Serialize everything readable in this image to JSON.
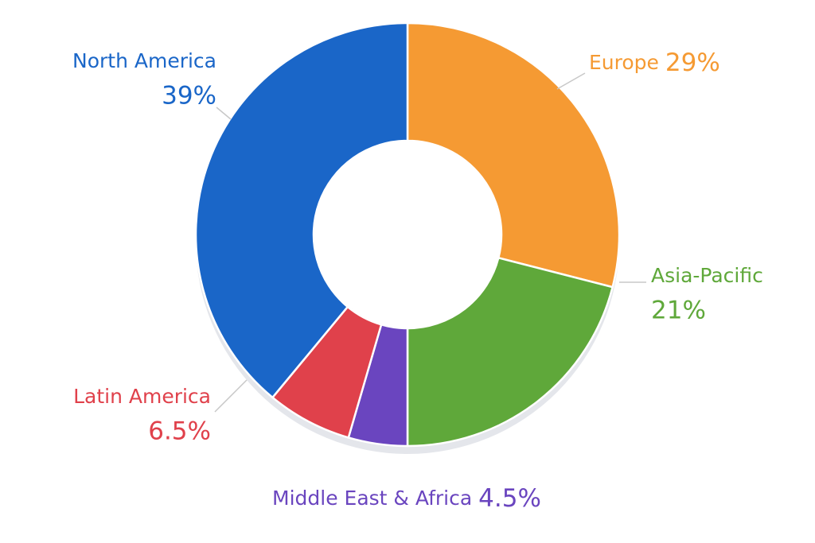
{
  "chart_data": {
    "type": "pie",
    "donut": true,
    "categories": [
      "Europe",
      "Asia-Pacific",
      "Middle East & Africa",
      "Latin America",
      "North America"
    ],
    "values": [
      29,
      21,
      4.5,
      6.5,
      39
    ],
    "value_labels": [
      "29%",
      "21%",
      "4.5%",
      "6.5%",
      "39%"
    ],
    "colors": [
      "#f59a33",
      "#5fa83a",
      "#6a45bf",
      "#e0414b",
      "#1a66c8"
    ]
  }
}
